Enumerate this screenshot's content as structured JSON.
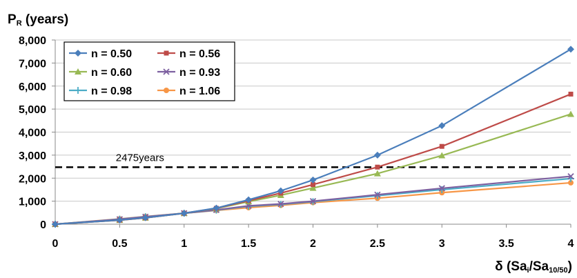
{
  "chart_data": {
    "type": "line",
    "title": "",
    "ylabel": {
      "main": "P",
      "sub": "R",
      "suffix": " (years)"
    },
    "xlabel": {
      "prefix": "δ (Sa",
      "sub1": "i",
      "mid": "/Sa",
      "sub2": "10/50",
      "suffix": ")"
    },
    "xlim": [
      0,
      4
    ],
    "ylim": [
      0,
      8000
    ],
    "x_ticks": [
      "0",
      "0.5",
      "1",
      "1.5",
      "2",
      "2.5",
      "3",
      "3.5",
      "4"
    ],
    "x_tick_values": [
      0,
      0.5,
      1,
      1.5,
      2,
      2.5,
      3,
      3.5,
      4
    ],
    "y_ticks": [
      "0",
      "1,000",
      "2,000",
      "3,000",
      "4,000",
      "5,000",
      "6,000",
      "7,000",
      "8,000"
    ],
    "y_tick_values": [
      0,
      1000,
      2000,
      3000,
      4000,
      5000,
      6000,
      7000,
      8000
    ],
    "grid": "horizontal",
    "legend_position": "top-left",
    "x": [
      0,
      0.5,
      0.7,
      1,
      1.25,
      1.5,
      1.75,
      2,
      2.5,
      3,
      4
    ],
    "series": [
      {
        "name": "n = 0.50",
        "color": "#4a7ebb",
        "marker": "diamond",
        "values": [
          0,
          180,
          280,
          475,
          700,
          1060,
          1450,
          1920,
          3000,
          4280,
          7600
        ]
      },
      {
        "name": "n = 0.56",
        "color": "#be4b48",
        "marker": "square",
        "values": [
          0,
          175,
          275,
          475,
          690,
          1020,
          1350,
          1720,
          2480,
          3380,
          5650
        ]
      },
      {
        "name": "n = 0.60",
        "color": "#98b954",
        "marker": "triangle",
        "values": [
          0,
          175,
          275,
          475,
          680,
          980,
          1260,
          1570,
          2200,
          2980,
          4780
        ]
      },
      {
        "name": "n = 0.93",
        "color": "#7d60a0",
        "marker": "x",
        "values": [
          0,
          215,
          320,
          475,
          620,
          800,
          880,
          1000,
          1280,
          1560,
          2080
        ]
      },
      {
        "name": "n = 0.98",
        "color": "#4bacc6",
        "marker": "cross",
        "values": [
          0,
          220,
          325,
          475,
          610,
          780,
          860,
          980,
          1240,
          1500,
          1980
        ]
      },
      {
        "name": "n = 1.06",
        "color": "#f79646",
        "marker": "circle",
        "values": [
          0,
          230,
          335,
          475,
          600,
          720,
          820,
          940,
          1130,
          1370,
          1800
        ]
      }
    ],
    "reference_line": {
      "y": 2475,
      "label": "2475years",
      "style": "dashed"
    }
  }
}
